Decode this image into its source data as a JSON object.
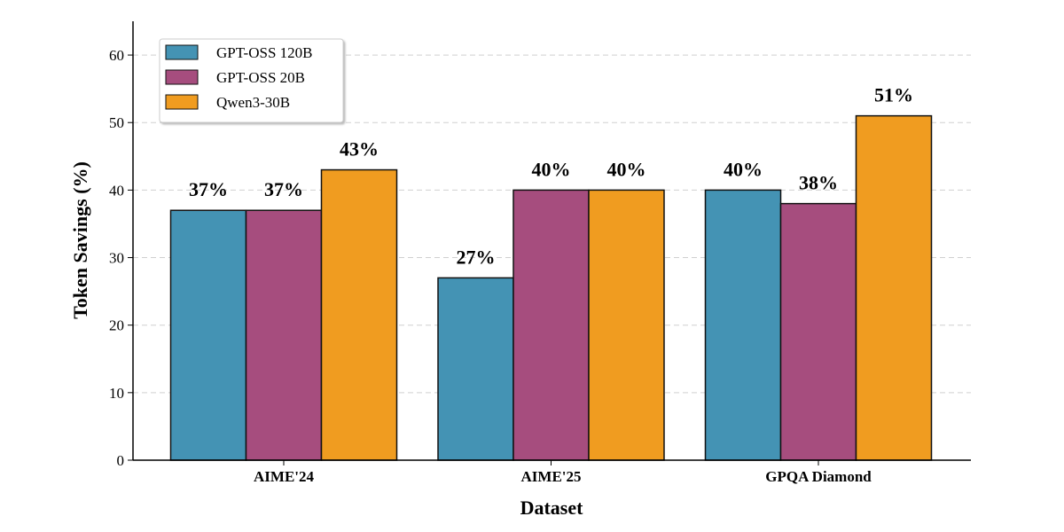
{
  "chart_data": {
    "type": "bar",
    "title": "",
    "xlabel": "Dataset",
    "ylabel": "Token Savings (%)",
    "ylim": [
      0,
      65
    ],
    "yticks": [
      0,
      10,
      20,
      30,
      40,
      50,
      60
    ],
    "grid": "y dashed",
    "legend": "top-left",
    "categories": [
      "AIME'24",
      "AIME'25",
      "GPQA Diamond"
    ],
    "series": [
      {
        "name": "GPT-OSS 120B",
        "color": "#4493b4",
        "values": [
          37,
          27,
          40
        ],
        "labels": [
          "37%",
          "27%",
          "40%"
        ]
      },
      {
        "name": "GPT-OSS 20B",
        "color": "#a64d7e",
        "values": [
          37,
          40,
          38
        ],
        "labels": [
          "37%",
          "40%",
          "38%"
        ]
      },
      {
        "name": "Qwen3-30B",
        "color": "#f09c20",
        "values": [
          43,
          40,
          51
        ],
        "labels": [
          "43%",
          "40%",
          "51%"
        ]
      }
    ]
  }
}
